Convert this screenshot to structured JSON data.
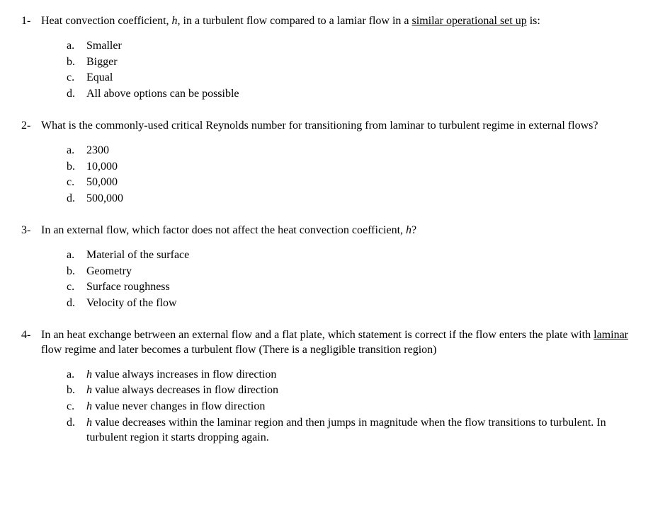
{
  "questions": [
    {
      "num": "1-",
      "text_parts": [
        {
          "t": "Heat convection coefficient, "
        },
        {
          "t": "h",
          "italic": true
        },
        {
          "t": ", in a turbulent flow compared to a lamiar flow in a "
        },
        {
          "t": "similar operational set up",
          "underline": true
        },
        {
          "t": " is:"
        }
      ],
      "options": [
        {
          "letter": "a.",
          "parts": [
            {
              "t": "Smaller"
            }
          ]
        },
        {
          "letter": "b.",
          "parts": [
            {
              "t": "Bigger"
            }
          ]
        },
        {
          "letter": "c.",
          "parts": [
            {
              "t": "Equal"
            }
          ]
        },
        {
          "letter": "d.",
          "parts": [
            {
              "t": "All above options can be possible"
            }
          ]
        }
      ]
    },
    {
      "num": "2-",
      "text_parts": [
        {
          "t": "What is the commonly-used critical Reynolds number for transitioning from laminar to turbulent regime in external flows?"
        }
      ],
      "options": [
        {
          "letter": "a.",
          "parts": [
            {
              "t": "2300"
            }
          ]
        },
        {
          "letter": "b.",
          "parts": [
            {
              "t": "10,000"
            }
          ]
        },
        {
          "letter": "c.",
          "parts": [
            {
              "t": "50,000"
            }
          ]
        },
        {
          "letter": "d.",
          "parts": [
            {
              "t": "500,000"
            }
          ]
        }
      ]
    },
    {
      "num": "3-",
      "text_parts": [
        {
          "t": "In an external flow, which factor does not affect the heat convection coefficient, "
        },
        {
          "t": "h",
          "italic": true
        },
        {
          "t": "?"
        }
      ],
      "options": [
        {
          "letter": "a.",
          "parts": [
            {
              "t": "Material of the surface"
            }
          ]
        },
        {
          "letter": "b.",
          "parts": [
            {
              "t": "Geometry"
            }
          ]
        },
        {
          "letter": "c.",
          "parts": [
            {
              "t": "Surface roughness"
            }
          ]
        },
        {
          "letter": "d.",
          "parts": [
            {
              "t": "Velocity of the flow"
            }
          ]
        }
      ]
    },
    {
      "num": "4-",
      "text_parts": [
        {
          "t": "In an heat exchange betrween an external flow and a flat plate, which statement is correct if the flow enters the plate with "
        },
        {
          "t": "laminar",
          "underline": true
        },
        {
          "t": " flow regime and later becomes a turbulent flow (There is a negligible transition region)"
        }
      ],
      "options": [
        {
          "letter": "a.",
          "parts": [
            {
              "t": "h",
              "italic": true
            },
            {
              "t": " value always increases in flow direction"
            }
          ]
        },
        {
          "letter": "b.",
          "parts": [
            {
              "t": "h",
              "italic": true
            },
            {
              "t": " value always decreases in flow direction"
            }
          ]
        },
        {
          "letter": "c.",
          "parts": [
            {
              "t": "h",
              "italic": true
            },
            {
              "t": " value never changes in flow direction"
            }
          ]
        },
        {
          "letter": "d.",
          "parts": [
            {
              "t": "h",
              "italic": true
            },
            {
              "t": " value decreases within the laminar region and then jumps in magnitude when the flow transitions to turbulent. In turbulent region it starts dropping again."
            }
          ]
        }
      ]
    }
  ]
}
